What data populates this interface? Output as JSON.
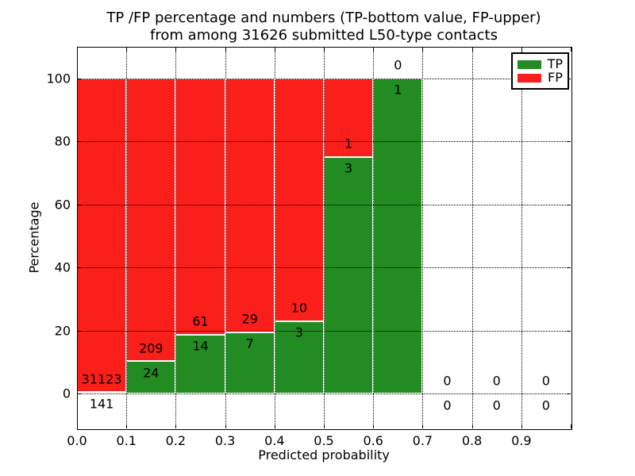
{
  "chart_data": {
    "type": "bar",
    "stacked": true,
    "unit": "percent-normalized per bin",
    "title_lines": [
      "TP /FP percentage and numbers (TP-bottom value, FP-upper)",
      "from among 31626 submitted L50-type contacts"
    ],
    "xlabel": "Predicted probability",
    "ylabel": "Percentage",
    "total_contacts": 31626,
    "bin_width": 0.1,
    "bin_starts": [
      0.0,
      0.1,
      0.2,
      0.3,
      0.4,
      0.5,
      0.6,
      0.7,
      0.8,
      0.9
    ],
    "series": [
      {
        "name": "TP",
        "color": "#228b22",
        "values": [
          141,
          24,
          14,
          7,
          3,
          3,
          1,
          0,
          0,
          0
        ]
      },
      {
        "name": "FP",
        "color": "#fa1f1a",
        "values": [
          31123,
          209,
          61,
          29,
          10,
          1,
          0,
          0,
          0,
          0
        ]
      }
    ],
    "tp_percent_of_bin": [
      0.45,
      10.3,
      18.67,
      19.44,
      23.08,
      75.0,
      100.0,
      0,
      0,
      0
    ],
    "xticks": [
      0.0,
      0.1,
      0.2,
      0.3,
      0.4,
      0.5,
      0.6,
      0.7,
      0.8,
      0.9,
      1.0
    ],
    "xtick_labels": [
      "0.0",
      "0.1",
      "0.2",
      "0.3",
      "0.4",
      "0.5",
      "0.6",
      "0.7",
      "0.8",
      "0.9",
      ""
    ],
    "yticks": [
      0,
      20,
      40,
      60,
      80,
      100
    ],
    "ytick_labels": [
      "0",
      "20",
      "40",
      "60",
      "80",
      "100"
    ],
    "xlim": [
      0,
      1
    ],
    "ylim": [
      -11,
      110
    ],
    "grid": "dotted both axes, drawn over bars",
    "bar_edge_color": "#ffffff",
    "legend_position": "upper right",
    "legend": [
      "TP",
      "FP"
    ],
    "label_note": "per-bin counts printed at stack boundary: FP count above, TP count below"
  }
}
